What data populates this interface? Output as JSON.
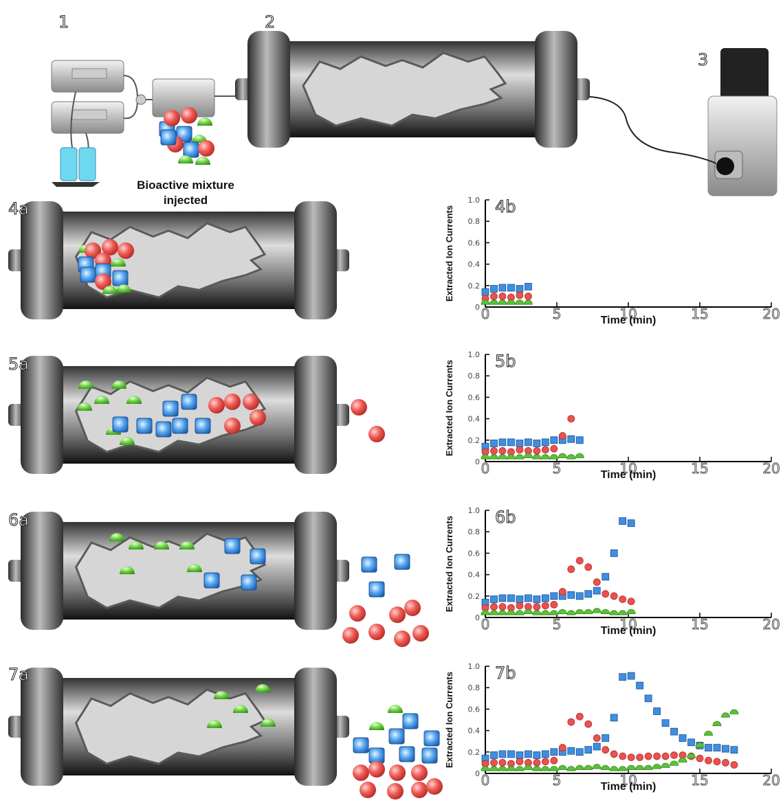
{
  "labels": {
    "step1": "1",
    "step2": "2",
    "step3": "3",
    "injection_lines": [
      "Bioactive mixture",
      "injected"
    ],
    "panels_a": [
      "4a",
      "5a",
      "6a",
      "7a"
    ]
  },
  "chart_data": [
    {
      "type": "scatter",
      "title": "4b",
      "xlabel": "Time (min)",
      "ylabel": "Extracted Ion Currents",
      "x": [
        0,
        0.6,
        1.2,
        1.8,
        2.4,
        3
      ],
      "series": [
        {
          "color": "#3f8fe0",
          "marker": "square",
          "values": [
            0.14,
            0.17,
            0.18,
            0.18,
            0.17,
            0.19
          ]
        },
        {
          "color": "#e8524f",
          "marker": "circle",
          "values": [
            0.08,
            0.1,
            0.1,
            0.09,
            0.11,
            0.1
          ]
        },
        {
          "color": "#5fbf3a",
          "marker": "dome",
          "values": [
            0.05,
            0.05,
            0.05,
            0.05,
            0.05,
            0.05
          ]
        }
      ],
      "xlim": [
        0,
        20
      ],
      "ylim": [
        0,
        1
      ],
      "xticks": [
        0,
        5,
        10,
        15,
        20
      ],
      "yticks": [
        0,
        0.2,
        0.4,
        0.6,
        0.8,
        {
          "value": 1,
          "label": "1.0"
        }
      ]
    },
    {
      "type": "scatter",
      "title": "5b",
      "xlabel": "Time (min)",
      "ylabel": "Extracted Ion Currents",
      "x": [
        0,
        0.6,
        1.2,
        1.8,
        2.4,
        3,
        3.6,
        4.2,
        4.8,
        5.4,
        6,
        6.6
      ],
      "series": [
        {
          "color": "#3f8fe0",
          "marker": "square",
          "values": [
            0.14,
            0.17,
            0.18,
            0.18,
            0.17,
            0.18,
            0.17,
            0.18,
            0.2,
            0.2,
            0.21,
            0.2
          ]
        },
        {
          "color": "#e8524f",
          "marker": "circle",
          "values": [
            0.09,
            0.1,
            0.1,
            0.09,
            0.11,
            0.1,
            0.1,
            0.11,
            0.12,
            0.24,
            0.4,
            null
          ]
        },
        {
          "color": "#5fbf3a",
          "marker": "dome",
          "values": [
            0.05,
            0.05,
            0.05,
            0.05,
            0.05,
            0.06,
            0.05,
            0.05,
            0.05,
            0.06,
            0.05,
            0.06
          ]
        }
      ],
      "xlim": [
        0,
        20
      ],
      "ylim": [
        0,
        1
      ],
      "xticks": [
        0,
        5,
        10,
        15,
        20
      ],
      "yticks": [
        0,
        0.2,
        0.4,
        0.6,
        0.8,
        {
          "value": 1,
          "label": "1.0"
        }
      ]
    },
    {
      "type": "scatter",
      "title": "6b",
      "xlabel": "Time (min)",
      "ylabel": "Extracted Ion Currents",
      "x": [
        0,
        0.6,
        1.2,
        1.8,
        2.4,
        3,
        3.6,
        4.2,
        4.8,
        5.4,
        6,
        6.6,
        7.2,
        7.8,
        8.4,
        9,
        9.6,
        10.2
      ],
      "series": [
        {
          "color": "#3f8fe0",
          "marker": "square",
          "values": [
            0.14,
            0.17,
            0.18,
            0.18,
            0.17,
            0.18,
            0.17,
            0.18,
            0.2,
            0.2,
            0.21,
            0.2,
            0.22,
            0.25,
            0.38,
            0.6,
            0.9,
            0.88
          ]
        },
        {
          "color": "#e8524f",
          "marker": "circle",
          "values": [
            0.09,
            0.1,
            0.1,
            0.09,
            0.11,
            0.1,
            0.1,
            0.11,
            0.12,
            0.24,
            0.45,
            0.53,
            0.47,
            0.33,
            0.22,
            0.2,
            0.17,
            0.15
          ]
        },
        {
          "color": "#5fbf3a",
          "marker": "dome",
          "values": [
            0.05,
            0.05,
            0.05,
            0.05,
            0.05,
            0.06,
            0.05,
            0.05,
            0.05,
            0.06,
            0.05,
            0.06,
            0.06,
            0.07,
            0.06,
            0.05,
            0.05,
            0.06
          ]
        }
      ],
      "xlim": [
        0,
        20
      ],
      "ylim": [
        0,
        1
      ],
      "xticks": [
        0,
        5,
        10,
        15,
        20
      ],
      "yticks": [
        0,
        0.2,
        0.4,
        0.6,
        0.8,
        {
          "value": 1,
          "label": "1.0"
        }
      ]
    },
    {
      "type": "scatter",
      "title": "7b",
      "xlabel": "Time (min)",
      "ylabel": "Extracted Ion Currents",
      "x": [
        0,
        0.6,
        1.2,
        1.8,
        2.4,
        3,
        3.6,
        4.2,
        4.8,
        5.4,
        6,
        6.6,
        7.2,
        7.8,
        8.4,
        9,
        9.6,
        10.2,
        10.8,
        11.4,
        12,
        12.6,
        13.2,
        13.8,
        14.4,
        15,
        15.6,
        16.2,
        16.8,
        17.4
      ],
      "series": [
        {
          "color": "#3f8fe0",
          "marker": "square",
          "values": [
            0.14,
            0.17,
            0.18,
            0.18,
            0.17,
            0.18,
            0.17,
            0.18,
            0.2,
            0.2,
            0.21,
            0.2,
            0.22,
            0.25,
            0.33,
            0.52,
            0.9,
            0.91,
            0.82,
            0.7,
            0.58,
            0.47,
            0.39,
            0.33,
            0.29,
            0.26,
            0.24,
            0.24,
            0.23,
            0.22
          ]
        },
        {
          "color": "#e8524f",
          "marker": "circle",
          "values": [
            0.09,
            0.1,
            0.1,
            0.09,
            0.11,
            0.1,
            0.1,
            0.11,
            0.12,
            0.24,
            0.48,
            0.53,
            0.46,
            0.33,
            0.22,
            0.18,
            0.16,
            0.15,
            0.15,
            0.16,
            0.16,
            0.16,
            0.17,
            0.17,
            0.16,
            0.14,
            0.12,
            0.11,
            0.1,
            0.08
          ]
        },
        {
          "color": "#5fbf3a",
          "marker": "dome",
          "values": [
            0.05,
            0.05,
            0.05,
            0.05,
            0.05,
            0.06,
            0.05,
            0.05,
            0.05,
            0.06,
            0.05,
            0.06,
            0.06,
            0.07,
            0.06,
            0.05,
            0.05,
            0.06,
            0.06,
            0.06,
            0.07,
            0.08,
            0.1,
            0.13,
            0.17,
            0.27,
            0.38,
            0.47,
            0.55,
            0.58
          ]
        }
      ],
      "xlim": [
        0,
        20
      ],
      "ylim": [
        0,
        1
      ],
      "xticks": [
        0,
        5,
        10,
        15,
        20
      ],
      "yticks": [
        0,
        0.2,
        0.4,
        0.6,
        0.8,
        {
          "value": 1,
          "label": "1.0"
        }
      ]
    }
  ]
}
